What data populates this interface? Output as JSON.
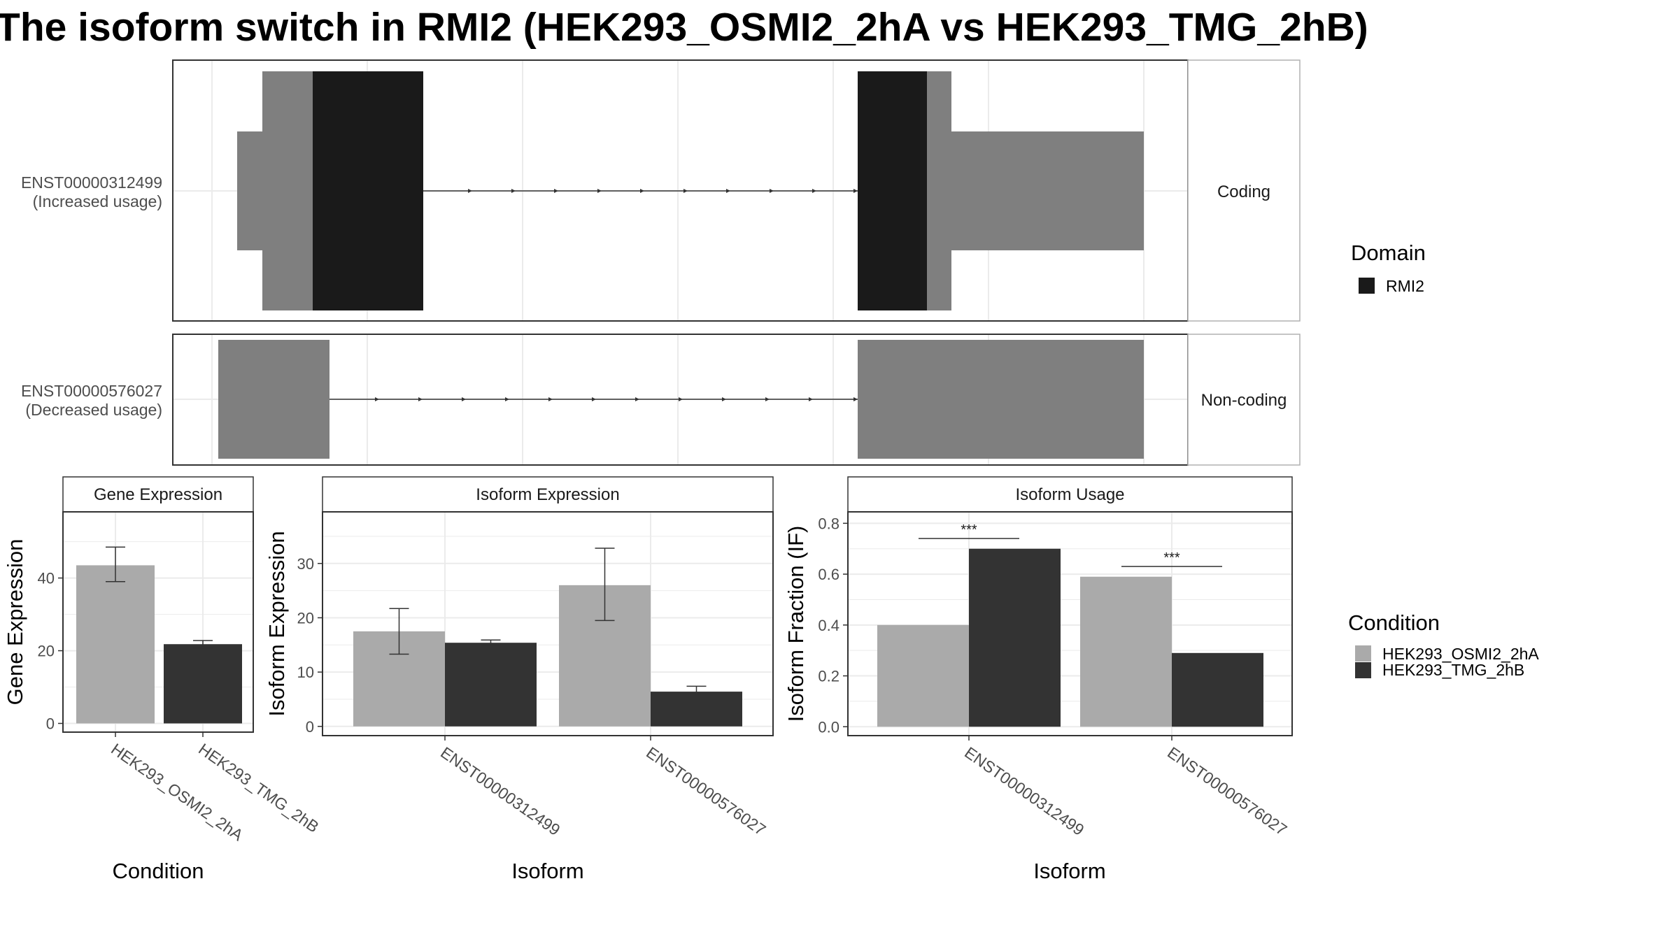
{
  "title": "The isoform switch in RMI2 (HEK293_OSMI2_2hA vs HEK293_TMG_2hB)",
  "colors": {
    "domain": "#1a1a1a",
    "utr": "#7f7f7f",
    "cond_a": "#aaaaaa",
    "cond_b": "#333333",
    "grid": "#ebebeb",
    "strip": "#ffffff"
  },
  "transcripts": [
    {
      "id": "ENST00000312499",
      "usage": "(Increased usage)",
      "type": "Coding"
    },
    {
      "id": "ENST00000576027",
      "usage": "(Decreased usage)",
      "type": "Non-coding"
    }
  ],
  "legend_domain": {
    "title": "Domain",
    "items": [
      "RMI2"
    ]
  },
  "legend_condition": {
    "title": "Condition",
    "items": [
      "HEK293_OSMI2_2hA",
      "HEK293_TMG_2hB"
    ]
  },
  "chart_data": [
    {
      "type": "bar",
      "title": "Gene Expression",
      "xlabel": "Condition",
      "ylabel": "Gene Expression",
      "categories": [
        "HEK293_OSMI2_2hA",
        "HEK293_TMG_2hB"
      ],
      "values": [
        43.5,
        21.8
      ],
      "errors_low": [
        39,
        20.8
      ],
      "errors_high": [
        48.5,
        22.8
      ],
      "ylim": [
        -2.4,
        58.2
      ],
      "yticks": [
        0,
        20,
        40
      ]
    },
    {
      "type": "bar",
      "title": "Isoform Expression",
      "xlabel": "Isoform",
      "ylabel": "Isoform Expression",
      "categories": [
        "ENST00000312499",
        "ENST00000576027"
      ],
      "series": [
        {
          "name": "HEK293_OSMI2_2hA",
          "values": [
            17.5,
            26.0
          ],
          "err_low": [
            13.3,
            19.5
          ],
          "err_high": [
            21.7,
            32.8
          ]
        },
        {
          "name": "HEK293_TMG_2hB",
          "values": [
            15.4,
            6.4
          ],
          "err_low": [
            14.9,
            5.6
          ],
          "err_high": [
            15.9,
            7.4
          ]
        }
      ],
      "ylim": [
        -1.7,
        39.5
      ],
      "yticks": [
        0,
        10,
        20,
        30
      ]
    },
    {
      "type": "bar",
      "title": "Isoform Usage",
      "xlabel": "Isoform",
      "ylabel": "Isoform Fraction (IF)",
      "categories": [
        "ENST00000312499",
        "ENST00000576027"
      ],
      "series": [
        {
          "name": "HEK293_OSMI2_2hA",
          "values": [
            0.4,
            0.59
          ]
        },
        {
          "name": "HEK293_TMG_2hB",
          "values": [
            0.7,
            0.29
          ]
        }
      ],
      "significance": [
        "***",
        "***"
      ],
      "ylim": [
        -0.035,
        0.845
      ],
      "yticks": [
        "0.0",
        "0.2",
        "0.4",
        "0.6",
        "0.8"
      ]
    }
  ]
}
